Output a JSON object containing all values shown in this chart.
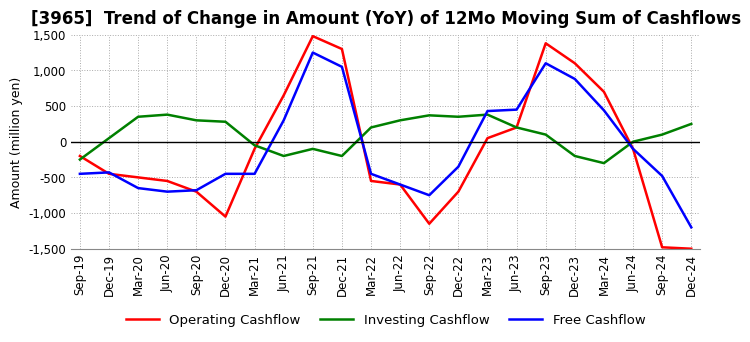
{
  "title": "[3965]  Trend of Change in Amount (YoY) of 12Mo Moving Sum of Cashflows",
  "ylabel": "Amount (million yen)",
  "ylim": [
    -1500,
    1500
  ],
  "yticks": [
    -1500,
    -1000,
    -500,
    0,
    500,
    1000,
    1500
  ],
  "x_labels": [
    "Sep-19",
    "Dec-19",
    "Mar-20",
    "Jun-20",
    "Sep-20",
    "Dec-20",
    "Mar-21",
    "Jun-21",
    "Sep-21",
    "Dec-21",
    "Mar-22",
    "Jun-22",
    "Sep-22",
    "Dec-22",
    "Mar-23",
    "Jun-23",
    "Sep-23",
    "Dec-23",
    "Mar-24",
    "Jun-24",
    "Sep-24",
    "Dec-24"
  ],
  "operating": [
    -200,
    -450,
    -500,
    -550,
    -700,
    -1050,
    -100,
    650,
    1480,
    1300,
    -550,
    -600,
    -1150,
    -700,
    50,
    200,
    1380,
    1100,
    700,
    -100,
    -1480,
    -1500
  ],
  "investing": [
    -250,
    50,
    350,
    380,
    300,
    280,
    -50,
    -200,
    -100,
    -200,
    200,
    300,
    370,
    350,
    380,
    200,
    100,
    -200,
    -300,
    0,
    100,
    250
  ],
  "free": [
    -450,
    -430,
    -650,
    -700,
    -680,
    -450,
    -450,
    300,
    1250,
    1050,
    -450,
    -600,
    -750,
    -350,
    430,
    450,
    1100,
    880,
    440,
    -100,
    -480,
    -1200
  ],
  "operating_color": "#ff0000",
  "investing_color": "#008000",
  "free_color": "#0000ff",
  "bg_color": "#ffffff",
  "grid_color": "#aaaaaa",
  "title_fontsize": 12,
  "label_fontsize": 9,
  "tick_fontsize": 8.5,
  "legend_fontsize": 9.5
}
